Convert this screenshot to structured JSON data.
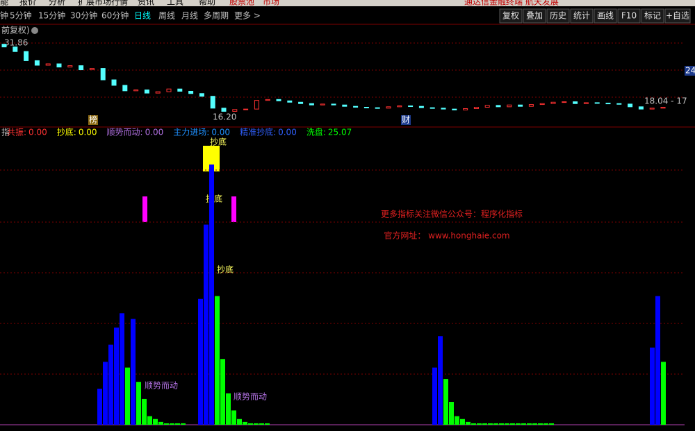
{
  "menu": [
    "能",
    "报价",
    "分析",
    "扩展市场行情",
    "资讯",
    "工具",
    "帮助",
    "股票池",
    "市场"
  ],
  "promo": "通达信金融终端  航天发展",
  "periods": [
    "钟",
    "5分钟",
    "15分钟",
    "30分钟",
    "60分钟",
    "日线",
    "周线",
    "月线",
    "多周期",
    "更多 >"
  ],
  "buttons": [
    "复权",
    "叠加",
    "历史",
    "统计",
    "画线",
    "F10",
    "标记",
    "+自选"
  ],
  "chart_label": "前复权)",
  "price_labels": {
    "high": "31.86",
    "low": "16.20",
    "last": "18.04 - 17",
    "right": "24"
  },
  "annotations": [
    "榜",
    "财"
  ],
  "candles": [
    [
      31.6,
      31.0
    ],
    [
      31.0,
      30.0
    ],
    [
      30.0,
      28.0
    ],
    [
      28.0,
      27.0
    ],
    [
      27.0,
      27.3
    ],
    [
      27.3,
      26.6
    ],
    [
      26.6,
      26.9
    ],
    [
      26.9,
      26.0
    ],
    [
      26.0,
      26.3
    ],
    [
      26.3,
      23.8
    ],
    [
      23.8,
      22.6
    ],
    [
      22.6,
      21.4
    ],
    [
      21.4,
      21.6
    ],
    [
      21.6,
      20.9
    ],
    [
      20.9,
      21.2
    ],
    [
      21.2,
      21.8
    ],
    [
      21.8,
      21.3
    ],
    [
      21.3,
      20.8
    ],
    [
      20.8,
      20.2
    ],
    [
      20.2,
      17.6
    ],
    [
      17.6,
      16.9
    ],
    [
      16.9,
      17.3
    ],
    [
      17.3,
      17.4
    ],
    [
      17.4,
      19.3
    ],
    [
      19.3,
      19.5
    ],
    [
      19.5,
      19.2
    ],
    [
      19.2,
      18.9
    ],
    [
      18.9,
      18.6
    ],
    [
      18.6,
      18.3
    ],
    [
      18.3,
      18.5
    ],
    [
      18.5,
      18.3
    ],
    [
      18.3,
      18.0
    ],
    [
      18.0,
      17.8
    ],
    [
      17.8,
      17.7
    ],
    [
      17.7,
      17.6
    ],
    [
      17.6,
      17.9
    ],
    [
      17.9,
      18.1
    ],
    [
      18.1,
      18.0
    ],
    [
      18.0,
      17.7
    ],
    [
      17.7,
      17.6
    ],
    [
      17.6,
      17.4
    ],
    [
      17.4,
      17.2
    ],
    [
      17.2,
      17.5
    ],
    [
      17.5,
      17.8
    ],
    [
      17.8,
      18.2
    ],
    [
      18.2,
      17.9
    ],
    [
      17.9,
      18.3
    ],
    [
      18.3,
      18.0
    ],
    [
      18.0,
      18.4
    ],
    [
      18.4,
      18.6
    ],
    [
      18.6,
      18.9
    ],
    [
      18.9,
      19.0
    ],
    [
      19.0,
      18.6
    ],
    [
      18.6,
      18.8
    ],
    [
      18.8,
      18.7
    ],
    [
      18.7,
      18.6
    ],
    [
      18.6,
      18.5
    ],
    [
      18.5,
      17.9
    ],
    [
      17.9,
      17.4
    ],
    [
      17.4,
      17.6
    ],
    [
      17.6,
      17.8
    ]
  ],
  "indicator_prefix": "指",
  "legend": [
    {
      "name": "共振:",
      "value": "0.00"
    },
    {
      "name": "抄底:",
      "value": "0.00"
    },
    {
      "name": "顺势而动:",
      "value": "0.00"
    },
    {
      "name": "主力进场:",
      "value": "0.00"
    },
    {
      "name": "精准抄底:",
      "value": "0.00"
    },
    {
      "name": "洗盘:",
      "value": "25.07"
    }
  ],
  "clusters": [
    {
      "values": [
        12.6,
        22,
        28,
        34,
        39,
        20,
        37,
        15,
        9,
        3,
        2,
        1,
        0.5,
        0.5,
        0.5,
        0.5
      ],
      "colors": [
        "b",
        "b",
        "b",
        "b",
        "b",
        "g",
        "b",
        "g",
        "g",
        "g",
        "g",
        "g",
        "g",
        "g",
        "g",
        "g"
      ]
    },
    {
      "values": [
        44,
        70,
        91,
        45,
        23,
        11,
        5,
        2,
        1,
        0.5,
        0.5,
        0.5,
        0.5
      ],
      "colors": [
        "b",
        "b",
        "b",
        "g",
        "g",
        "g",
        "g",
        "g",
        "g",
        "g",
        "g",
        "g",
        "g"
      ]
    },
    {
      "values": [
        20,
        31,
        16,
        8,
        3,
        2,
        1,
        0.5,
        0.5,
        0.5,
        0.5,
        0.5,
        0.5,
        0.5,
        0.5,
        0.5,
        0.5,
        0.5,
        0.5,
        0.5,
        0.5,
        0.5
      ],
      "colors": [
        "b",
        "b",
        "g",
        "g",
        "g",
        "g",
        "g",
        "g",
        "g",
        "g",
        "g",
        "g",
        "g",
        "g",
        "g",
        "g",
        "g",
        "g",
        "g",
        "g",
        "g",
        "g"
      ]
    },
    {
      "values": [
        27,
        45,
        22
      ],
      "colors": [
        "b",
        "b",
        "g"
      ]
    }
  ],
  "signals": {
    "top": "抄底",
    "mid": "抄底",
    "low": "抄底",
    "trend1": "顺势而动",
    "trend2": "顺势而动"
  },
  "watermark": [
    "更多指标关注微信公众号：程序化指标",
    "官方网址： www.honghaie.com"
  ]
}
